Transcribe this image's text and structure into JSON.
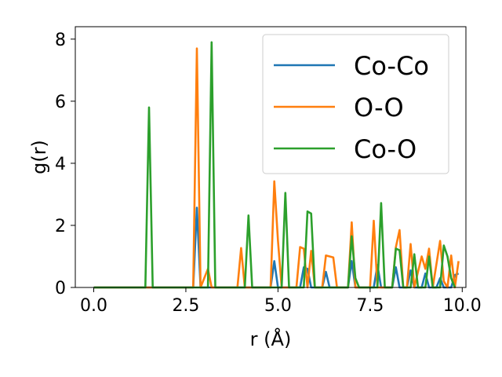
{
  "chart_data": {
    "type": "line",
    "title": "",
    "xlabel": "r (Å)",
    "ylabel": "g(r)",
    "xlim": [
      -0.5,
      10.1
    ],
    "ylim": [
      0,
      8.4
    ],
    "xticks": [
      0.0,
      2.5,
      5.0,
      7.5,
      10.0
    ],
    "xtick_labels": [
      "0.0",
      "2.5",
      "5.0",
      "7.5",
      "10.0"
    ],
    "yticks": [
      0,
      2,
      4,
      6,
      8
    ],
    "ytick_labels": [
      "0",
      "2",
      "4",
      "6",
      "8"
    ],
    "grid": false,
    "legend_position": "top-right",
    "series": [
      {
        "name": "Co-Co",
        "color": "#1f77b4",
        "points": [
          [
            0.0,
            0
          ],
          [
            2.7,
            0
          ],
          [
            2.8,
            2.57
          ],
          [
            2.9,
            0
          ],
          [
            4.8,
            0
          ],
          [
            4.9,
            0.85
          ],
          [
            5.0,
            0
          ],
          [
            5.6,
            0
          ],
          [
            5.7,
            0.65
          ],
          [
            5.8,
            0.6
          ],
          [
            5.9,
            0
          ],
          [
            6.2,
            0
          ],
          [
            6.3,
            0.5
          ],
          [
            6.4,
            0
          ],
          [
            6.9,
            0
          ],
          [
            7.0,
            0.85
          ],
          [
            7.1,
            0
          ],
          [
            7.6,
            0
          ],
          [
            7.7,
            0.72
          ],
          [
            7.8,
            0
          ],
          [
            8.1,
            0
          ],
          [
            8.2,
            0.65
          ],
          [
            8.3,
            0
          ],
          [
            8.5,
            0
          ],
          [
            8.6,
            0.55
          ],
          [
            8.7,
            0
          ],
          [
            8.9,
            0
          ],
          [
            9.0,
            0.45
          ],
          [
            9.1,
            0
          ],
          [
            9.3,
            0
          ],
          [
            9.4,
            0.3
          ],
          [
            9.5,
            0
          ],
          [
            9.7,
            0
          ],
          [
            9.8,
            0.4
          ],
          [
            9.9,
            0.45
          ]
        ]
      },
      {
        "name": "O-O",
        "color": "#ff7f0e",
        "points": [
          [
            0.0,
            0
          ],
          [
            2.7,
            0
          ],
          [
            2.8,
            7.7
          ],
          [
            2.9,
            0
          ],
          [
            3.1,
            0.6
          ],
          [
            3.2,
            0
          ],
          [
            3.9,
            0
          ],
          [
            4.0,
            1.27
          ],
          [
            4.1,
            0
          ],
          [
            4.8,
            0
          ],
          [
            4.9,
            3.42
          ],
          [
            5.0,
            1.5
          ],
          [
            5.1,
            0
          ],
          [
            5.5,
            0
          ],
          [
            5.6,
            1.3
          ],
          [
            5.7,
            1.25
          ],
          [
            5.8,
            0
          ],
          [
            5.9,
            1.18
          ],
          [
            6.0,
            0
          ],
          [
            6.2,
            0
          ],
          [
            6.3,
            1.03
          ],
          [
            6.4,
            1.0
          ],
          [
            6.5,
            0.97
          ],
          [
            6.6,
            0
          ],
          [
            6.9,
            0
          ],
          [
            7.0,
            2.1
          ],
          [
            7.1,
            0
          ],
          [
            7.5,
            0
          ],
          [
            7.6,
            2.15
          ],
          [
            7.7,
            0
          ],
          [
            8.1,
            0
          ],
          [
            8.2,
            1.3
          ],
          [
            8.3,
            1.85
          ],
          [
            8.4,
            0
          ],
          [
            8.5,
            0
          ],
          [
            8.6,
            1.4
          ],
          [
            8.7,
            0
          ],
          [
            8.9,
            1.0
          ],
          [
            9.0,
            0.6
          ],
          [
            9.1,
            1.25
          ],
          [
            9.2,
            0
          ],
          [
            9.4,
            1.5
          ],
          [
            9.5,
            0.2
          ],
          [
            9.6,
            0
          ],
          [
            9.7,
            1.03
          ],
          [
            9.8,
            0
          ],
          [
            9.9,
            0.85
          ]
        ]
      },
      {
        "name": "Co-O",
        "color": "#2ca02c",
        "points": [
          [
            0.0,
            0
          ],
          [
            1.4,
            0
          ],
          [
            1.5,
            5.8
          ],
          [
            1.6,
            0
          ],
          [
            3.1,
            0
          ],
          [
            3.2,
            7.9
          ],
          [
            3.3,
            0
          ],
          [
            4.1,
            0
          ],
          [
            4.2,
            2.32
          ],
          [
            4.3,
            0
          ],
          [
            5.1,
            0
          ],
          [
            5.2,
            3.05
          ],
          [
            5.3,
            0
          ],
          [
            5.7,
            0
          ],
          [
            5.8,
            2.45
          ],
          [
            5.9,
            2.38
          ],
          [
            6.0,
            0
          ],
          [
            6.9,
            0
          ],
          [
            7.0,
            1.65
          ],
          [
            7.1,
            0.3
          ],
          [
            7.2,
            0
          ],
          [
            7.7,
            0
          ],
          [
            7.8,
            2.72
          ],
          [
            7.9,
            0
          ],
          [
            8.1,
            0
          ],
          [
            8.2,
            1.25
          ],
          [
            8.3,
            1.2
          ],
          [
            8.4,
            0
          ],
          [
            8.6,
            0
          ],
          [
            8.7,
            1.07
          ],
          [
            8.8,
            0
          ],
          [
            9.0,
            0
          ],
          [
            9.1,
            1.0
          ],
          [
            9.2,
            0
          ],
          [
            9.4,
            0
          ],
          [
            9.5,
            1.35
          ],
          [
            9.6,
            1.0
          ],
          [
            9.7,
            0.3
          ],
          [
            9.8,
            0
          ]
        ]
      }
    ]
  }
}
